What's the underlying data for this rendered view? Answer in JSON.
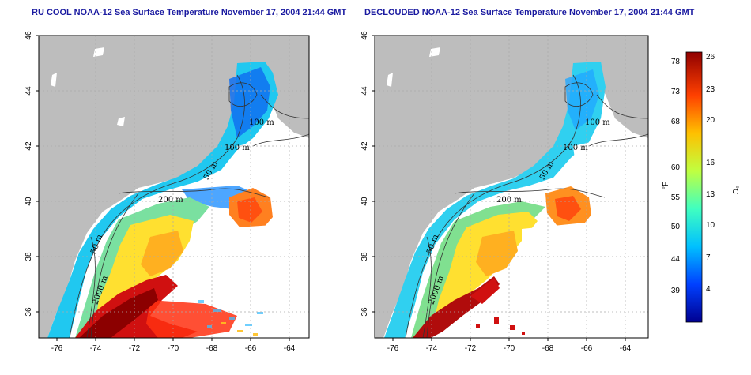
{
  "panels": [
    {
      "title": "RU COOL NOAA-12 Sea Surface Temperature November 17, 2004 21:44 GMT",
      "isobaths": [
        "100 m",
        "100 m",
        "50 m",
        "200 m",
        "50 m",
        "2000 m"
      ]
    },
    {
      "title": "DECLOUDED NOAA-12 Sea Surface Temperature November 17, 2004 21:44 GMT",
      "isobaths": [
        "100 m",
        "100 m",
        "50 m",
        "200 m",
        "50 m",
        "2000 m"
      ]
    }
  ],
  "axes": {
    "x_ticks": [
      "-76",
      "-74",
      "-72",
      "-70",
      "-68",
      "-66",
      "-64"
    ],
    "y_ticks": [
      "46",
      "44",
      "42",
      "40",
      "38",
      "36"
    ]
  },
  "colorbar": {
    "fahrenheit_label": "°F",
    "celsius_label": "°C",
    "fahrenheit_ticks": [
      "78",
      "73",
      "68",
      "60",
      "55",
      "50",
      "44",
      "39"
    ],
    "celsius_ticks": [
      "26",
      "23",
      "20",
      "16",
      "13",
      "10",
      "7",
      "4"
    ],
    "colors": [
      "#000090",
      "#0040ff",
      "#00c0ff",
      "#40ffc0",
      "#c0ff40",
      "#ffc000",
      "#ff4000",
      "#900000"
    ]
  }
}
